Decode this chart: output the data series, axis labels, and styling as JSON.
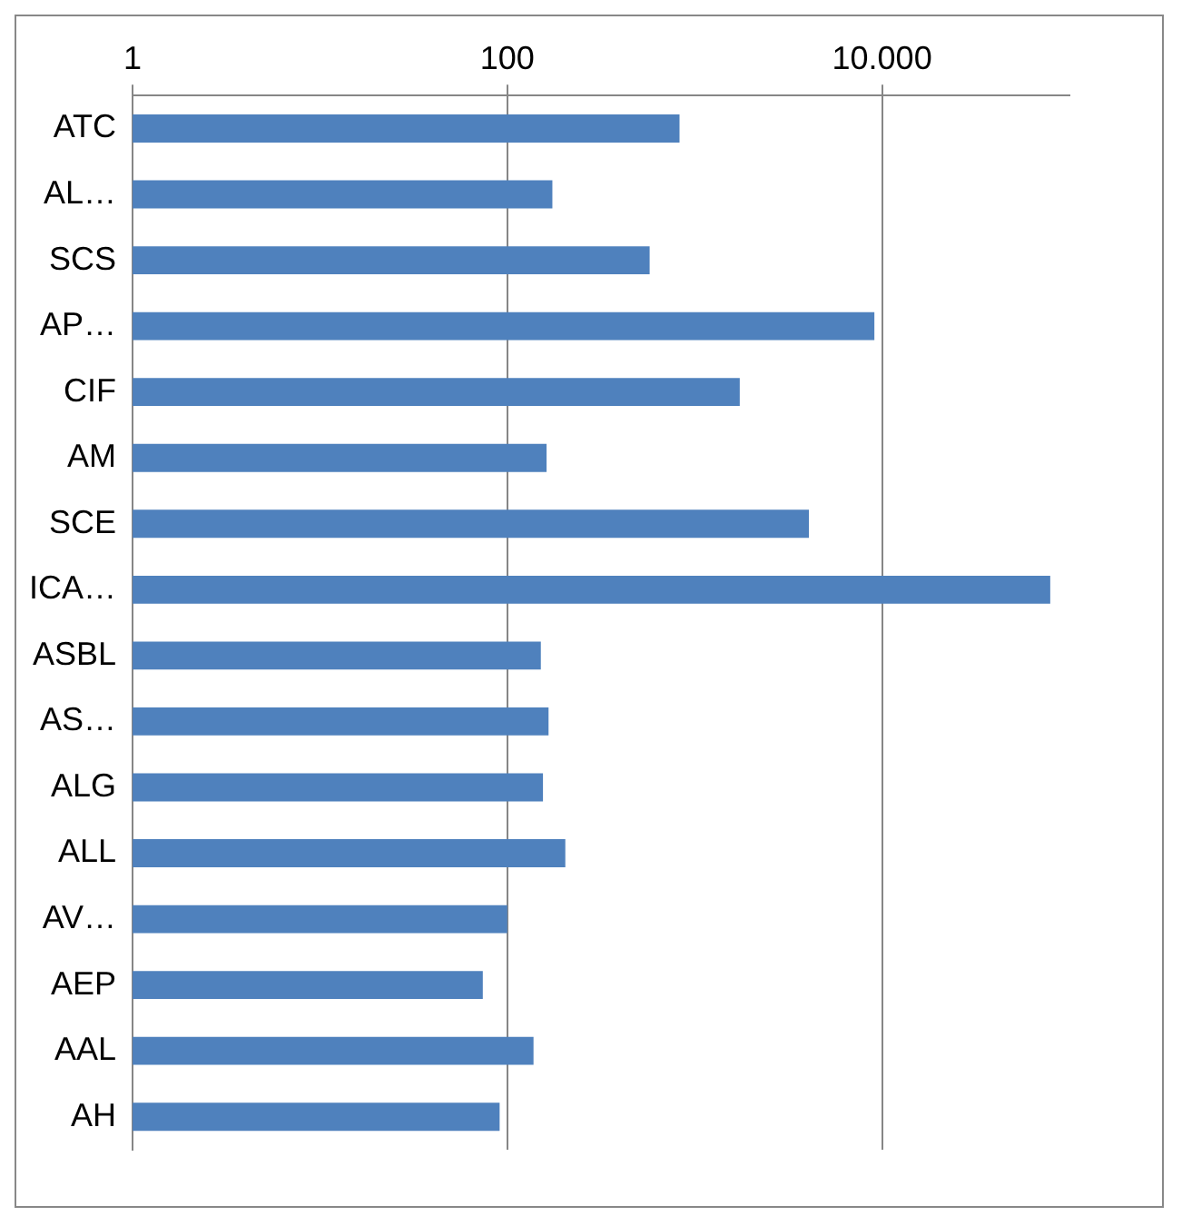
{
  "chart_data": {
    "type": "bar",
    "orientation": "horizontal",
    "log": "x",
    "grid": "x",
    "color": "#4f81bd",
    "categories": [
      "ATC",
      "AL…",
      "SCS",
      "AP…",
      "CIF",
      "AM",
      "SCE",
      "ICA…",
      "ASBL",
      "AS…",
      "ALG",
      "ALL",
      "AV…",
      "AEP",
      "AAL",
      "AH"
    ],
    "values": [
      830,
      174,
      575,
      9100,
      1740,
      162,
      4070,
      79000,
      151,
      166,
      155,
      204,
      100,
      74,
      138,
      91
    ],
    "xlim": [
      1,
      100000
    ],
    "xticks": [
      1,
      100,
      {
        "value": 10000,
        "label": "10.000"
      }
    ]
  }
}
